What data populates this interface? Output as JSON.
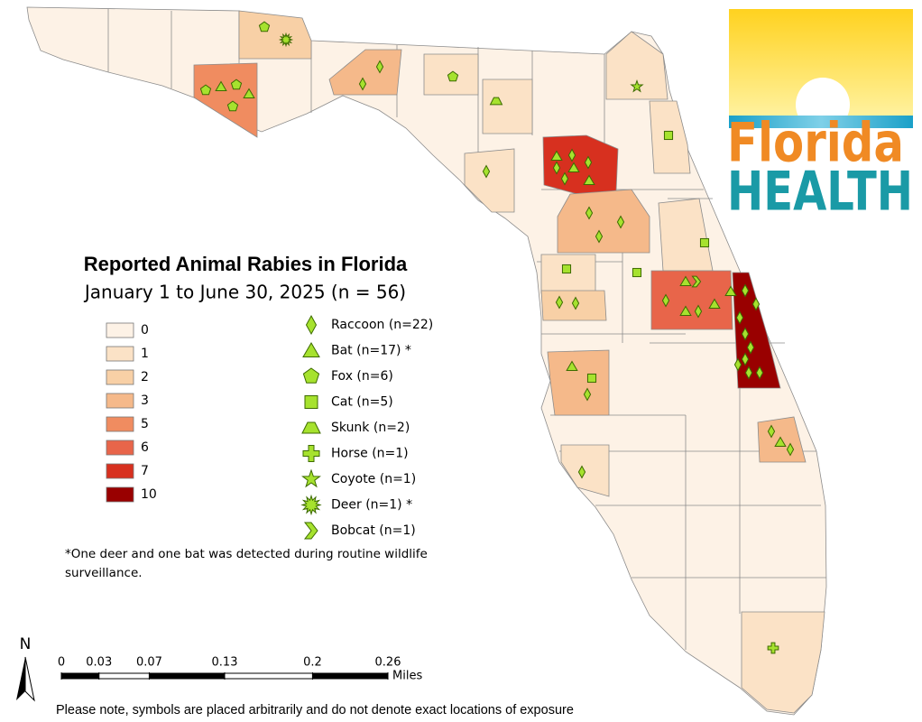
{
  "header": {
    "title": "Reported Animal Rabies in Florida",
    "subtitle": "January 1 to June 30, 2025 (n = 56)"
  },
  "legend": {
    "classes": [
      {
        "label": 0,
        "color": "#fdf2e6"
      },
      {
        "label": 1,
        "color": "#fbe2c6"
      },
      {
        "label": 2,
        "color": "#f8d0a6"
      },
      {
        "label": 3,
        "color": "#f5b98a"
      },
      {
        "label": 5,
        "color": "#f08c60"
      },
      {
        "label": 6,
        "color": "#e8654a"
      },
      {
        "label": 7,
        "color": "#d7301f"
      },
      {
        "label": 10,
        "color": "#990000"
      }
    ],
    "species": [
      "Raccoon (n=22)",
      "Bat (n=17) *",
      "Fox (n=6)",
      "Cat (n=5)",
      "Skunk (n=2)",
      "Horse (n=1)",
      "Coyote (n=1)",
      "Deer (n=1) *",
      "Bobcat (n=1)"
    ]
  },
  "footnote": "*One deer and one bat was detected during routine wildlife surveillance.",
  "scale": {
    "ticks": [
      0,
      0.03,
      0.07,
      0.13,
      0.2,
      0.26
    ],
    "unit": "Miles"
  },
  "north": "N",
  "note": "Please note, symbols are placed arbitrarily and do not denote exact locations of exposure",
  "logo": {
    "line1": "Florida",
    "line2": "HEALTH"
  }
}
